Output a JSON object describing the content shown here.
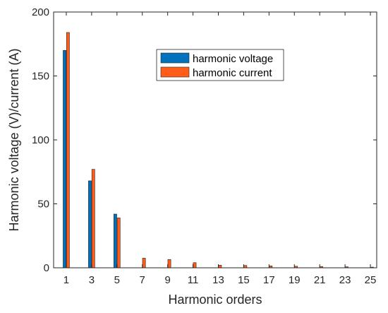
{
  "chart_data": {
    "type": "bar",
    "xlabel": "Harmonic orders",
    "ylabel": "Harmonic voltage (V)/current (A)",
    "ylim": [
      0,
      200
    ],
    "xlim": [
      0,
      25.5
    ],
    "yticks": [
      0,
      50,
      100,
      150,
      200
    ],
    "xticks": [
      1,
      3,
      5,
      7,
      9,
      11,
      13,
      15,
      17,
      19,
      21,
      23,
      25
    ],
    "grid": false,
    "legend_position": "top-center",
    "categories": [
      1,
      3,
      5,
      7,
      9,
      11,
      13,
      15,
      17,
      19,
      21,
      23,
      25
    ],
    "series": [
      {
        "name": "harmonic voltage",
        "color": "#0072BD",
        "values": [
          170,
          68,
          42,
          0,
          0,
          0,
          0,
          0,
          0,
          0,
          0,
          0,
          0
        ]
      },
      {
        "name": "harmonic current",
        "color": "#FF5C1A",
        "values": [
          184,
          77,
          39,
          7.5,
          6.5,
          4,
          2,
          1.8,
          1.5,
          1.2,
          1,
          0.8,
          0.5
        ]
      }
    ]
  }
}
